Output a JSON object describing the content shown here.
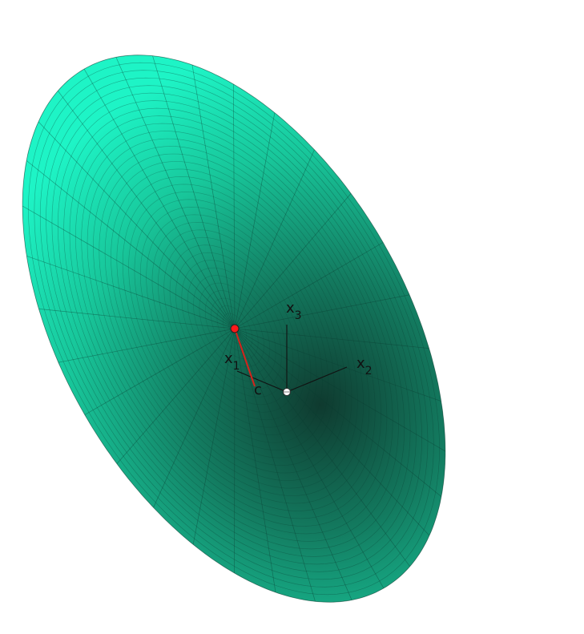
{
  "colors": {
    "background": "#ffffff",
    "surface_light": "#1df2c4",
    "surface_dark": "#0f3a2f",
    "grid_line": "#0b3b30",
    "axis": "#111111",
    "segment": "#d3231b",
    "point_fill": "#ff1a1a",
    "origin_fill": "#ffffff"
  },
  "surface": {
    "shape": "elliptic-cone",
    "radial_divisions": 32,
    "ring_divisions": 36
  },
  "labels": {
    "x1": {
      "main": "x",
      "sub": "1"
    },
    "x2": {
      "main": "x",
      "sub": "2"
    },
    "x3": {
      "main": "x",
      "sub": "3"
    },
    "c": "c"
  }
}
